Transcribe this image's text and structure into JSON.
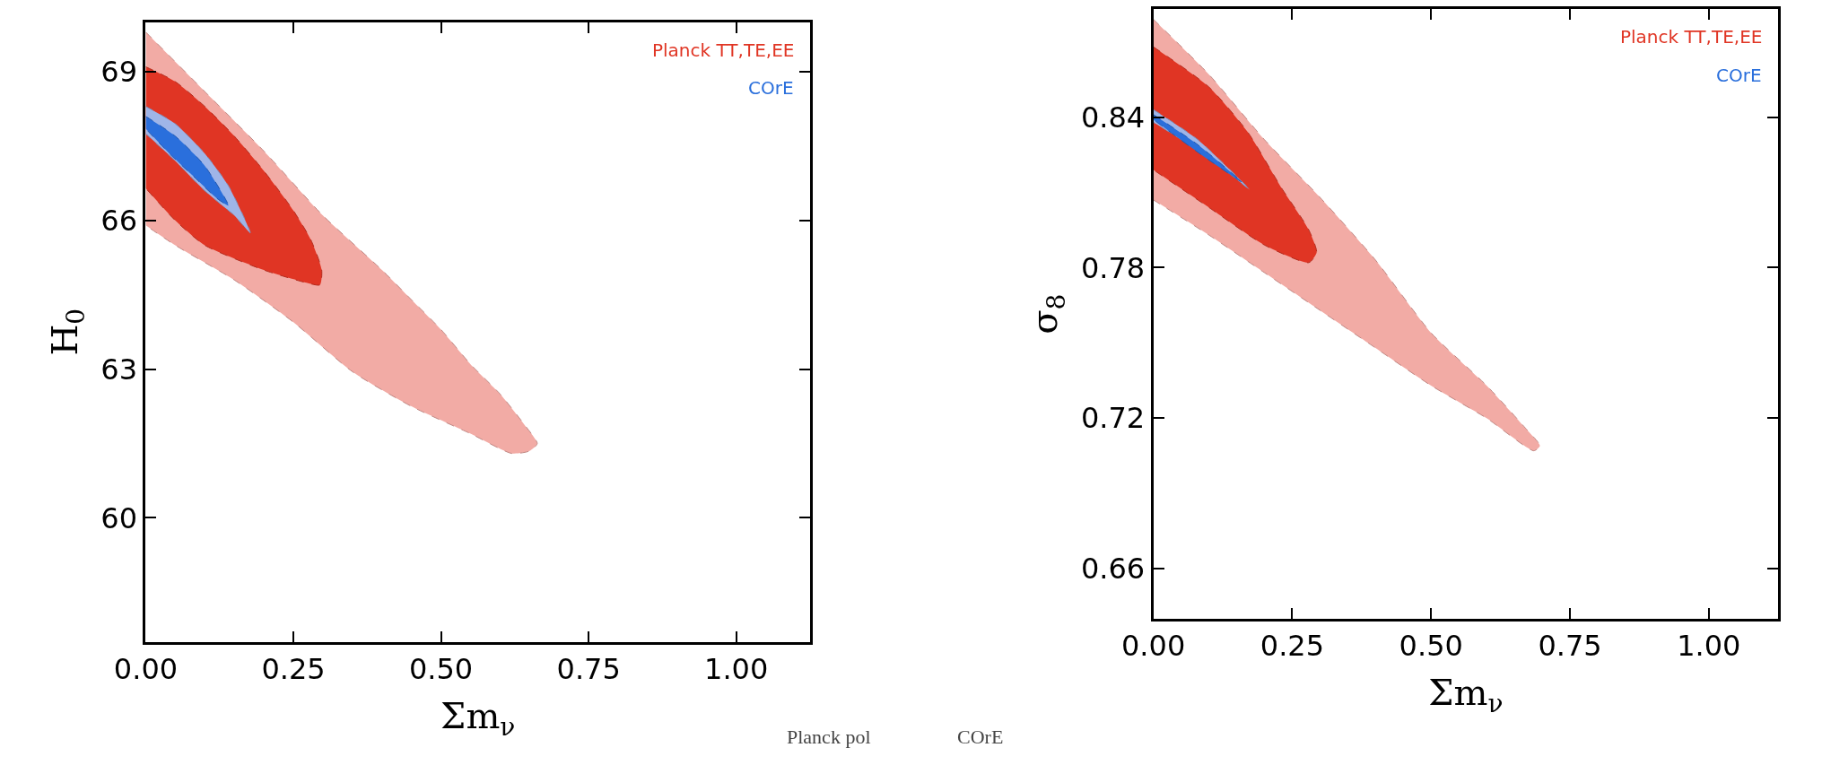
{
  "chart_data": [
    {
      "type": "area",
      "xlabel": "Σm$_{ν}$",
      "ylabel": "H$_{0}$",
      "xlim": [
        0,
        1.125
      ],
      "xticks": [
        {
          "value": 0,
          "label": "0.00"
        },
        {
          "value": 0.25,
          "label": "0.25"
        },
        {
          "value": 0.5,
          "label": "0.50"
        },
        {
          "value": 0.75,
          "label": "0.75"
        },
        {
          "value": 1,
          "label": "1.00"
        }
      ],
      "ylim": [
        57.5,
        70
      ],
      "yticks": [
        60,
        63,
        66,
        69
      ],
      "legend": "top right",
      "line_style": "dashed",
      "annotations": [
        "Planck pol",
        "COrE"
      ],
      "series": [
        {
          "color": "#f2aba5",
          "x": [
            0,
            0.1,
            0.2,
            0.3,
            0.4,
            0.45,
            0.5,
            0.55,
            0.6,
            0.64,
            0.663,
            0.65,
            0.62,
            0.55,
            0.45,
            0.35,
            0.25,
            0.15,
            0.05,
            0
          ],
          "values": [
            69.8,
            68.6,
            67.4,
            66.1,
            65.0,
            64.4,
            63.8,
            63.1,
            62.5,
            61.9,
            61.5,
            61.35,
            61.3,
            61.7,
            62.25,
            62.95,
            63.95,
            64.8,
            65.5,
            65.9
          ]
        },
        {
          "name": "Planck TT,TE,EE",
          "color": "#e03524",
          "x": [
            0,
            0.05,
            0.1,
            0.15,
            0.2,
            0.25,
            0.28,
            0.298,
            0.295,
            0.27,
            0.2,
            0.1,
            0.05,
            0
          ],
          "values": [
            69.1,
            68.8,
            68.3,
            67.7,
            67.0,
            66.2,
            65.6,
            65.0,
            64.7,
            64.75,
            65.0,
            65.5,
            66.0,
            66.65
          ]
        },
        {
          "color": "#9fb5e8",
          "x": [
            0,
            0.05,
            0.1,
            0.14,
            0.177,
            0.15,
            0.1,
            0.05,
            0
          ],
          "values": [
            68.3,
            67.95,
            67.35,
            66.7,
            65.75,
            66.1,
            66.6,
            67.2,
            67.75
          ]
        },
        {
          "name": "COrE",
          "color": "#2a6fdc",
          "x": [
            0,
            0.05,
            0.1,
            0.14,
            0.12,
            0.08,
            0.04,
            0
          ],
          "values": [
            68.1,
            67.7,
            67.1,
            66.3,
            66.45,
            66.9,
            67.35,
            67.85
          ]
        }
      ]
    },
    {
      "type": "area",
      "xlabel": "Σm$_{ν}$",
      "ylabel": "σ$_{8}$",
      "xlim": [
        0,
        1.125
      ],
      "xticks": [
        {
          "value": 0,
          "label": "0.00"
        },
        {
          "value": 0.25,
          "label": "0.25"
        },
        {
          "value": 0.5,
          "label": "0.50"
        },
        {
          "value": 0.75,
          "label": "0.75"
        },
        {
          "value": 1,
          "label": "1.00"
        }
      ],
      "ylim": [
        0.64,
        0.883
      ],
      "yticks": [
        0.66,
        0.72,
        0.78,
        0.84
      ],
      "legend": "top right",
      "line_style": "dashed",
      "series": [
        {
          "color": "#f2aba5",
          "x": [
            0,
            0.1,
            0.2,
            0.3,
            0.4,
            0.5,
            0.6,
            0.67,
            0.696,
            0.685,
            0.6,
            0.5,
            0.4,
            0.3,
            0.2,
            0.1,
            0
          ],
          "values": [
            0.879,
            0.857,
            0.831,
            0.808,
            0.783,
            0.754,
            0.733,
            0.716,
            0.709,
            0.707,
            0.72,
            0.733,
            0.748,
            0.763,
            0.778,
            0.793,
            0.807
          ]
        },
        {
          "name": "Planck TT,TE,EE",
          "color": "#e03524",
          "x": [
            0,
            0.1,
            0.17,
            0.23,
            0.28,
            0.294,
            0.28,
            0.2,
            0.1,
            0
          ],
          "values": [
            0.868,
            0.852,
            0.834,
            0.812,
            0.795,
            0.786,
            0.782,
            0.789,
            0.804,
            0.819
          ]
        },
        {
          "color": "#9fb5e8",
          "x": [
            0,
            0.08,
            0.174,
            0.1,
            0
          ],
          "values": [
            0.843,
            0.831,
            0.811,
            0.824,
            0.838
          ]
        },
        {
          "name": "COrE",
          "color": "#2a6fdc",
          "x": [
            0,
            0.08,
            0.16,
            0.08,
            0
          ],
          "values": [
            0.841,
            0.829,
            0.814,
            0.826,
            0.839
          ]
        }
      ]
    }
  ]
}
